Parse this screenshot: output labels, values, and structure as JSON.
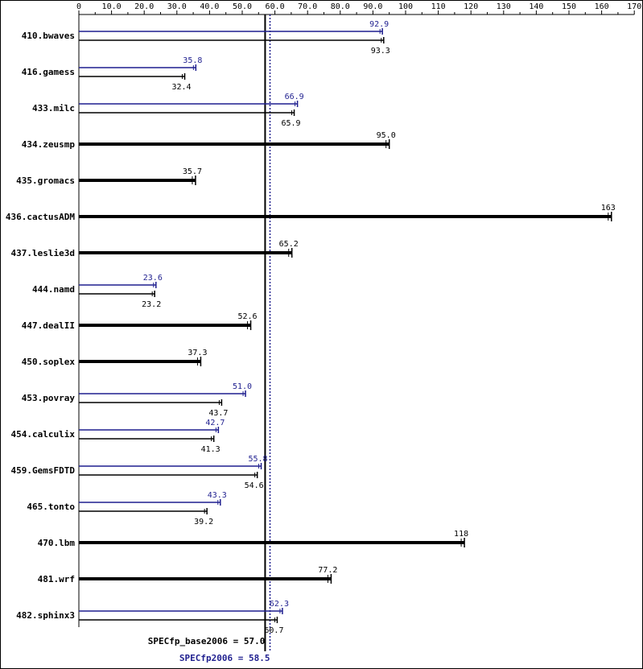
{
  "chart_data": {
    "type": "bar",
    "orientation": "horizontal",
    "x_ticks": [
      "0",
      "10.0",
      "20.0",
      "30.0",
      "40.0",
      "50.0",
      "60.0",
      "70.0",
      "80.0",
      "90.0",
      "100",
      "110",
      "120",
      "130",
      "140",
      "150",
      "160",
      "170"
    ],
    "xlim": [
      0,
      170
    ],
    "series": [
      {
        "name": "base",
        "color": "#000000"
      },
      {
        "name": "peak",
        "color": "#1f1f8f"
      }
    ],
    "benchmarks": [
      {
        "name": "410.bwaves",
        "base": 93.3,
        "base_label": "93.3",
        "peak": 92.9,
        "peak_label": "92.9"
      },
      {
        "name": "416.gamess",
        "base": 32.4,
        "base_label": "32.4",
        "peak": 35.8,
        "peak_label": "35.8"
      },
      {
        "name": "433.milc",
        "base": 65.9,
        "base_label": "65.9",
        "peak": 66.9,
        "peak_label": "66.9"
      },
      {
        "name": "434.zeusmp",
        "base": 95.0,
        "base_label": "95.0",
        "peak": null,
        "peak_label": null
      },
      {
        "name": "435.gromacs",
        "base": 35.7,
        "base_label": "35.7",
        "peak": null,
        "peak_label": null
      },
      {
        "name": "436.cactusADM",
        "base": 163,
        "base_label": "163",
        "peak": null,
        "peak_label": null
      },
      {
        "name": "437.leslie3d",
        "base": 65.2,
        "base_label": "65.2",
        "peak": null,
        "peak_label": null
      },
      {
        "name": "444.namd",
        "base": 23.2,
        "base_label": "23.2",
        "peak": 23.6,
        "peak_label": "23.6"
      },
      {
        "name": "447.dealII",
        "base": 52.6,
        "base_label": "52.6",
        "peak": null,
        "peak_label": null
      },
      {
        "name": "450.soplex",
        "base": 37.3,
        "base_label": "37.3",
        "peak": null,
        "peak_label": null
      },
      {
        "name": "453.povray",
        "base": 43.7,
        "base_label": "43.7",
        "peak": 51.0,
        "peak_label": "51.0"
      },
      {
        "name": "454.calculix",
        "base": 41.3,
        "base_label": "41.3",
        "peak": 42.7,
        "peak_label": "42.7"
      },
      {
        "name": "459.GemsFDTD",
        "base": 54.6,
        "base_label": "54.6",
        "peak": 55.8,
        "peak_label": "55.8"
      },
      {
        "name": "465.tonto",
        "base": 39.2,
        "base_label": "39.2",
        "peak": 43.3,
        "peak_label": "43.3"
      },
      {
        "name": "470.lbm",
        "base": 118,
        "base_label": "118",
        "peak": null,
        "peak_label": null
      },
      {
        "name": "481.wrf",
        "base": 77.2,
        "base_label": "77.2",
        "peak": null,
        "peak_label": null
      },
      {
        "name": "482.sphinx3",
        "base": 60.7,
        "base_label": "60.7",
        "peak": 62.3,
        "peak_label": "62.3"
      }
    ],
    "summary": {
      "base_label": "SPECfp_base2006 = 57.0",
      "base_value": 57.0,
      "peak_label": "SPECfp2006 = 58.5",
      "peak_value": 58.5
    },
    "grid": false,
    "legend": "none"
  }
}
